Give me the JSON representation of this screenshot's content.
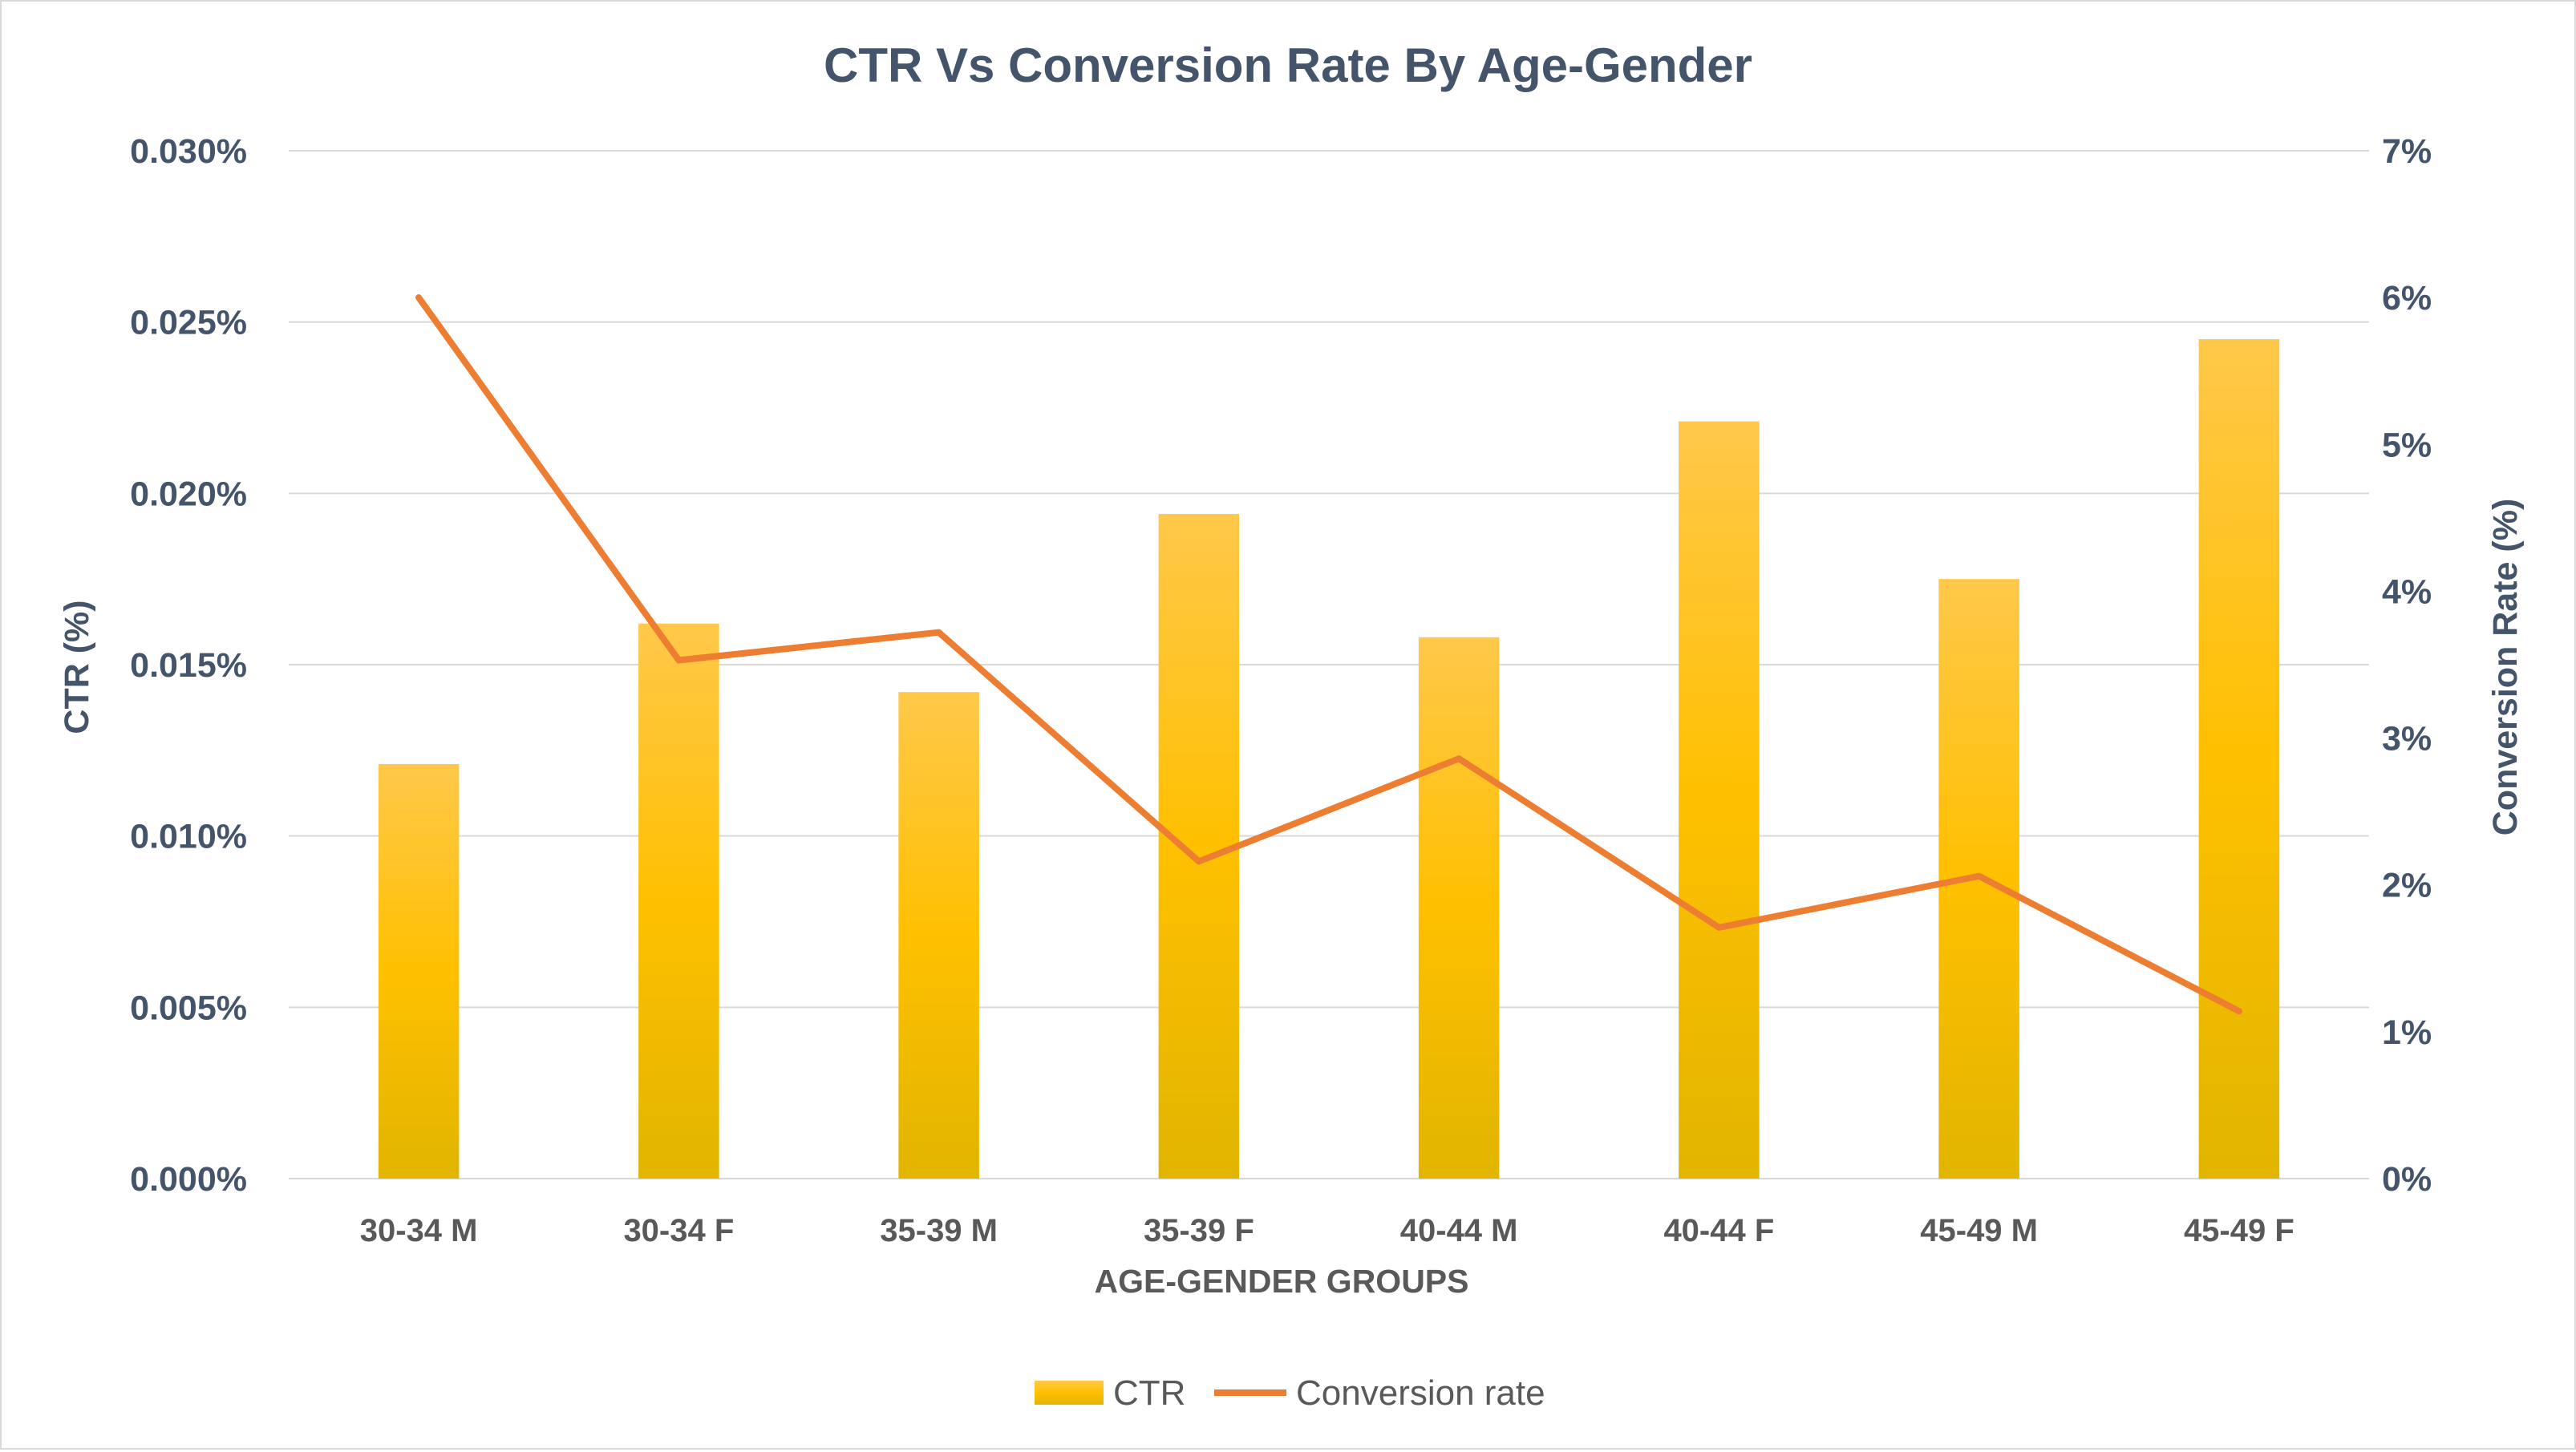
{
  "chart_data": {
    "type": "bar",
    "title": "CTR Vs Conversion Rate By Age-Gender",
    "xlabel": "AGE-GENDER GROUPS",
    "ylabel": "CTR (%)",
    "y2label": "Conversion Rate (%)",
    "categories": [
      "30-34 M",
      "30-34 F",
      "35-39 M",
      "35-39 F",
      "40-44 M",
      "40-44 F",
      "45-49 M",
      "45-49 F"
    ],
    "ylim": [
      0,
      0.03
    ],
    "y2lim": [
      0,
      7
    ],
    "yticks": [
      "0.000%",
      "0.005%",
      "0.010%",
      "0.015%",
      "0.020%",
      "0.025%",
      "0.030%"
    ],
    "y2ticks": [
      "0%",
      "1%",
      "2%",
      "3%",
      "4%",
      "5%",
      "6%",
      "7%"
    ],
    "grid": true,
    "legend_position": "bottom",
    "series": [
      {
        "name": "CTR",
        "type": "bar",
        "axis": "left",
        "color": "#ffc000",
        "values": [
          0.0121,
          0.0162,
          0.0142,
          0.0194,
          0.0158,
          0.0221,
          0.0175,
          0.0245
        ]
      },
      {
        "name": "Conversion rate",
        "type": "line",
        "axis": "right",
        "color": "#ed7d31",
        "values": [
          6.0,
          3.53,
          3.72,
          2.16,
          2.86,
          1.71,
          2.06,
          1.14
        ]
      }
    ]
  }
}
